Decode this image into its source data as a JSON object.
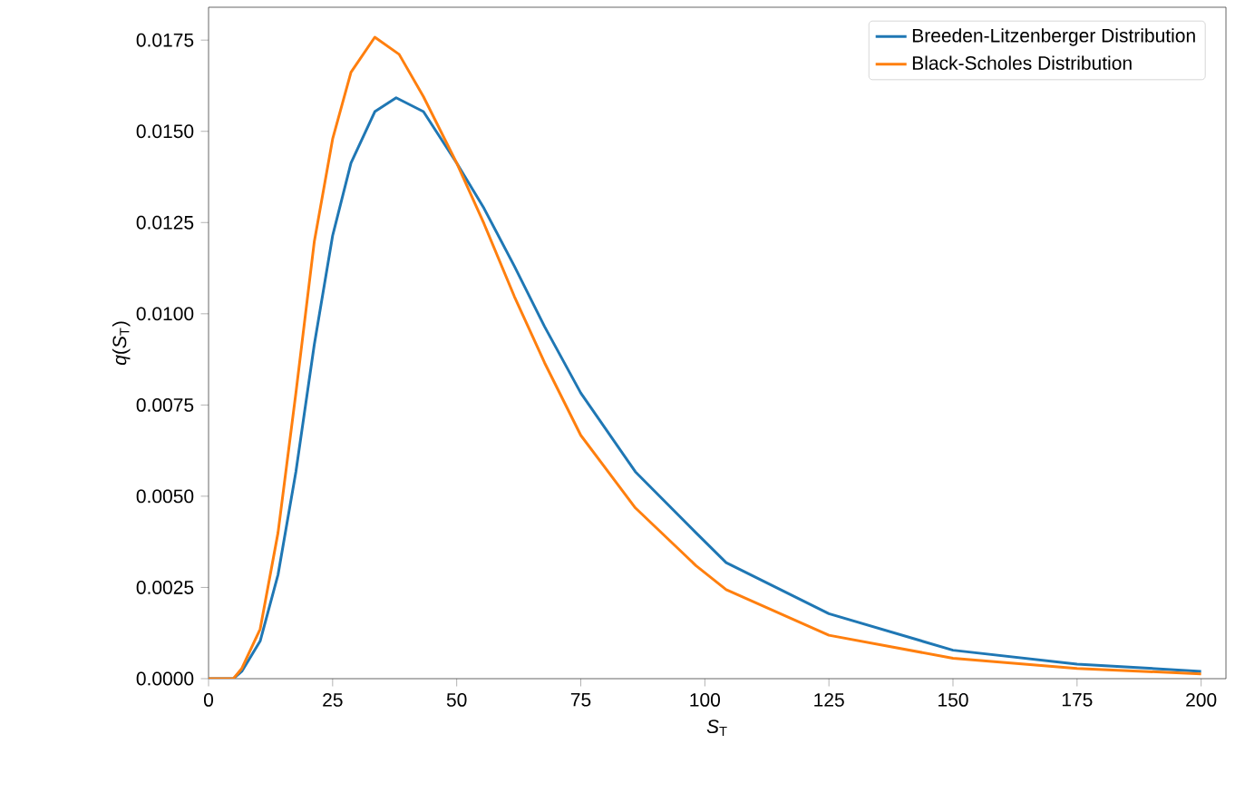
{
  "chart_data": {
    "type": "line",
    "xlabel": "*S*$_{T}$",
    "ylabel": "*q*(*S*$_{T}$)",
    "x": [
      0,
      5,
      6.7,
      10.4,
      14.0,
      17.6,
      21.3,
      25,
      28.7,
      33.5,
      37.8,
      43.3,
      50,
      55.5,
      61.6,
      67.7,
      75,
      86,
      98.2,
      104.3,
      125,
      150,
      175,
      200
    ],
    "series": [
      {
        "name": "Breeden-Litzenberger Distribution",
        "color": "#1f77b4",
        "values": [
          0,
          0,
          0.0002,
          0.00103,
          0.00285,
          0.00567,
          0.00915,
          0.01214,
          0.01413,
          0.01554,
          0.01592,
          0.01554,
          0.01413,
          0.01289,
          0.01131,
          0.00965,
          0.00783,
          0.00567,
          0.004,
          0.00318,
          0.00178,
          0.00078,
          0.0004,
          0.0002
        ]
      },
      {
        "name": "Black-Scholes Distribution",
        "color": "#ff7f0e",
        "x": [
          0,
          5,
          6.7,
          10.4,
          14.0,
          17.6,
          21.3,
          25,
          28.7,
          33.5,
          38.4,
          43.3,
          50,
          55.5,
          61.6,
          67.7,
          75,
          86,
          98.2,
          104.3,
          125,
          150,
          175,
          200
        ],
        "values": [
          0,
          0,
          0.00028,
          0.00136,
          0.004,
          0.00783,
          0.01197,
          0.01479,
          0.01662,
          0.01758,
          0.01711,
          0.01595,
          0.01413,
          0.01247,
          0.01048,
          0.00866,
          0.00667,
          0.00468,
          0.0031,
          0.00244,
          0.00119,
          0.00056,
          0.00028,
          0.00013
        ]
      }
    ],
    "xlim": [
      0,
      205
    ],
    "ylim": [
      0,
      0.0184
    ],
    "xticks": [
      0,
      25,
      50,
      75,
      100,
      125,
      150,
      175,
      200
    ],
    "yticks": [
      {
        "value": 0,
        "label": "0.0000"
      },
      {
        "value": 0.0025,
        "label": "0.0025"
      },
      {
        "value": 0.005,
        "label": "0.0050"
      },
      {
        "value": 0.0075,
        "label": "0.0075"
      },
      {
        "value": 0.01,
        "label": "0.0100"
      },
      {
        "value": 0.0125,
        "label": "0.0125"
      },
      {
        "value": 0.015,
        "label": "0.0150"
      },
      {
        "value": 0.0175,
        "label": "0.0175"
      }
    ],
    "legend": "top right",
    "grid": false,
    "marker": "none",
    "line_style": "solid"
  }
}
